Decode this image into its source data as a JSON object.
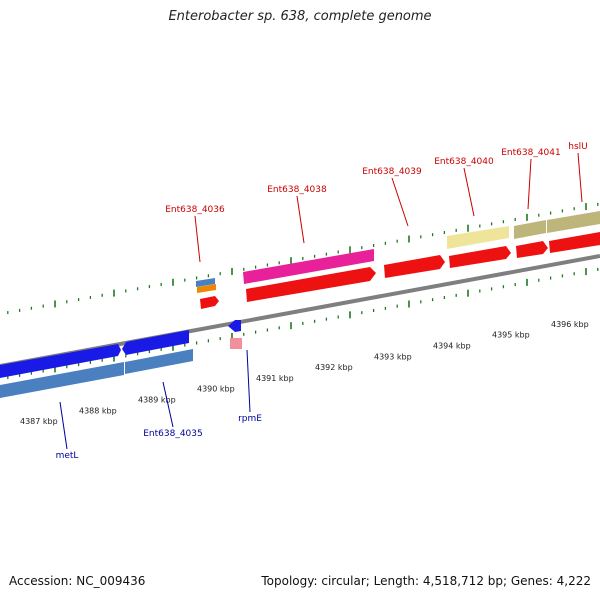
{
  "title": "Enterobacter sp. 638, complete genome",
  "footer": {
    "accession": "Accession: NC_009436",
    "summary": "Topology: circular; Length: 4,518,712 bp; Genes: 4,222"
  },
  "colors": {
    "backbone": "#8a8a8a",
    "tick": "#1f7a1f",
    "forward_label": "#cc0000",
    "reverse_label": "#00009c"
  },
  "scale": {
    "unit": "kbp",
    "ticks": [
      {
        "pos_kbp": 4387,
        "label": "4387 kbp"
      },
      {
        "pos_kbp": 4388,
        "label": "4388 kbp"
      },
      {
        "pos_kbp": 4389,
        "label": "4389 kbp"
      },
      {
        "pos_kbp": 4390,
        "label": "4390 kbp"
      },
      {
        "pos_kbp": 4391,
        "label": "4391 kbp"
      },
      {
        "pos_kbp": 4392,
        "label": "4392 kbp"
      },
      {
        "pos_kbp": 4393,
        "label": "4393 kbp"
      },
      {
        "pos_kbp": 4394,
        "label": "4394 kbp"
      },
      {
        "pos_kbp": 4395,
        "label": "4395 kbp"
      },
      {
        "pos_kbp": 4396,
        "label": "4396 kbp"
      }
    ]
  },
  "forward_labels": [
    {
      "text": "Ent638_4036",
      "kbp": 4390.6
    },
    {
      "text": "Ent638_4038",
      "kbp": 4391.9
    },
    {
      "text": "Ent638_4039",
      "kbp": 4393.6
    },
    {
      "text": "Ent638_4040",
      "kbp": 4394.7
    },
    {
      "text": "Ent638_4041",
      "kbp": 4395.6
    },
    {
      "text": "hslU",
      "kbp": 4396.4
    }
  ],
  "reverse_labels": [
    {
      "text": "metL",
      "kbp": 4387.3
    },
    {
      "text": "Ent638_4035",
      "kbp": 4389.7
    },
    {
      "text": "rpmE",
      "kbp": 4391.1
    }
  ]
}
